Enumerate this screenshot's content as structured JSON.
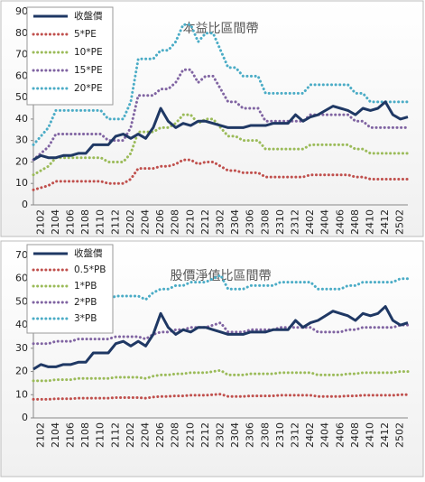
{
  "chart_data": [
    {
      "type": "line",
      "title": "本益比區間帶",
      "categories": [
        null,
        "2102",
        null,
        "2104",
        null,
        "2106",
        null,
        "2108",
        null,
        "2110",
        null,
        "2112",
        null,
        "2202",
        null,
        "2204",
        null,
        "2206",
        null,
        "2208",
        null,
        "2210",
        null,
        "2212",
        null,
        "2302",
        null,
        "2304",
        null,
        "2306",
        null,
        "2308",
        null,
        "2310",
        null,
        "2312",
        null,
        "2402",
        null,
        "2404",
        null,
        "2406",
        null,
        "2408",
        null,
        "2410",
        null,
        "2412",
        null,
        "2502",
        null
      ],
      "series": [
        {
          "name": "收盤價",
          "color": "#1f3864",
          "values": [
            21,
            23,
            22,
            22,
            23,
            23,
            24,
            24,
            28,
            28,
            28,
            32,
            33,
            31,
            33,
            31,
            36,
            45,
            39,
            36,
            38,
            37,
            39,
            39,
            38,
            37,
            36,
            36,
            36,
            37,
            37,
            37,
            38,
            38,
            38,
            42,
            39,
            41,
            42,
            44,
            46,
            45,
            44,
            42,
            45,
            44,
            45,
            48,
            42,
            40,
            41
          ]
        },
        {
          "name": "5*PE",
          "color": "#c0504d",
          "values": [
            7,
            8,
            9,
            11,
            11,
            11,
            11,
            11,
            11,
            11,
            10,
            10,
            10,
            12,
            17,
            17,
            17,
            18,
            18,
            19,
            21,
            21,
            19,
            20,
            20,
            18,
            16,
            16,
            15,
            15,
            15,
            13,
            13,
            13,
            13,
            13,
            13,
            14,
            14,
            14,
            14,
            14,
            14,
            13,
            13,
            12,
            12,
            12,
            12,
            12,
            12
          ]
        },
        {
          "name": "10*PE",
          "color": "#9bbb59",
          "values": [
            14,
            16,
            18,
            22,
            22,
            22,
            22,
            22,
            22,
            22,
            20,
            20,
            20,
            24,
            34,
            34,
            34,
            36,
            36,
            38,
            42,
            42,
            38,
            40,
            40,
            36,
            32,
            32,
            30,
            30,
            30,
            26,
            26,
            26,
            26,
            26,
            26,
            28,
            28,
            28,
            28,
            28,
            28,
            26,
            26,
            24,
            24,
            24,
            24,
            24,
            24
          ]
        },
        {
          "name": "15*PE",
          "color": "#8064a2",
          "values": [
            21,
            24,
            27,
            33,
            33,
            33,
            33,
            33,
            33,
            33,
            30,
            30,
            30,
            36,
            51,
            51,
            51,
            54,
            54,
            57,
            63,
            63,
            57,
            60,
            60,
            54,
            48,
            48,
            45,
            45,
            45,
            39,
            39,
            39,
            39,
            39,
            39,
            42,
            42,
            42,
            42,
            42,
            42,
            39,
            39,
            36,
            36,
            36,
            36,
            36,
            36
          ]
        },
        {
          "name": "20*PE",
          "color": "#4bacc6",
          "values": [
            28,
            32,
            36,
            44,
            44,
            44,
            44,
            44,
            44,
            44,
            40,
            40,
            40,
            48,
            68,
            68,
            68,
            72,
            72,
            76,
            84,
            84,
            76,
            80,
            80,
            72,
            64,
            64,
            60,
            60,
            60,
            52,
            52,
            52,
            52,
            52,
            52,
            56,
            56,
            56,
            56,
            56,
            56,
            52,
            52,
            48,
            48,
            48,
            48,
            48,
            48
          ]
        }
      ],
      "ylim": [
        0,
        90
      ],
      "yticks": [
        0,
        10,
        20,
        30,
        40,
        50,
        60,
        70,
        80,
        90
      ]
    },
    {
      "type": "line",
      "title": "股價淨值比區間帶",
      "categories": [
        null,
        "2102",
        null,
        "2104",
        null,
        "2106",
        null,
        "2108",
        null,
        "2110",
        null,
        "2112",
        null,
        "2202",
        null,
        "2204",
        null,
        "2206",
        null,
        "2208",
        null,
        "2210",
        null,
        "2212",
        null,
        "2302",
        null,
        "2304",
        null,
        "2306",
        null,
        "2308",
        null,
        "2310",
        null,
        "2312",
        null,
        "2402",
        null,
        "2404",
        null,
        "2406",
        null,
        "2408",
        null,
        "2410",
        null,
        "2412",
        null,
        "2502",
        null
      ],
      "series": [
        {
          "name": "收盤價",
          "color": "#1f3864",
          "values": [
            21,
            23,
            22,
            22,
            23,
            23,
            24,
            24,
            28,
            28,
            28,
            32,
            33,
            31,
            33,
            31,
            36,
            45,
            39,
            36,
            38,
            37,
            39,
            39,
            38,
            37,
            36,
            36,
            36,
            37,
            37,
            37,
            38,
            38,
            38,
            42,
            39,
            41,
            42,
            44,
            46,
            45,
            44,
            42,
            45,
            44,
            45,
            48,
            42,
            40,
            41
          ]
        },
        {
          "name": "0.5*PB",
          "color": "#c0504d",
          "values": [
            8,
            8,
            8,
            8.25,
            8.25,
            8.25,
            8.5,
            8.5,
            8.5,
            8.5,
            8.5,
            8.75,
            8.75,
            8.75,
            8.75,
            8.5,
            9,
            9.25,
            9.25,
            9.5,
            9.5,
            9.75,
            9.75,
            9.75,
            10,
            10.25,
            9.25,
            9.25,
            9.25,
            9.5,
            9.5,
            9.5,
            9.5,
            9.75,
            9.75,
            9.75,
            9.75,
            9.75,
            9.25,
            9.25,
            9.25,
            9.25,
            9.5,
            9.5,
            9.75,
            9.75,
            9.75,
            9.75,
            9.75,
            10,
            10
          ]
        },
        {
          "name": "1*PB",
          "color": "#9bbb59",
          "values": [
            16,
            16,
            16,
            16.5,
            16.5,
            16.5,
            17,
            17,
            17,
            17,
            17,
            17.5,
            17.5,
            17.5,
            17.5,
            17,
            18,
            18.5,
            18.5,
            19,
            19,
            19.5,
            19.5,
            19.5,
            20,
            20.5,
            18.5,
            18.5,
            18.5,
            19,
            19,
            19,
            19,
            19.5,
            19.5,
            19.5,
            19.5,
            19.5,
            18.5,
            18.5,
            18.5,
            18.5,
            19,
            19,
            19.5,
            19.5,
            19.5,
            19.5,
            19.5,
            20,
            20
          ]
        },
        {
          "name": "2*PB",
          "color": "#8064a2",
          "values": [
            32,
            32,
            32,
            33,
            33,
            33,
            34,
            34,
            34,
            34,
            34,
            35,
            35,
            35,
            35,
            34,
            36,
            37,
            37,
            38,
            38,
            39,
            39,
            39,
            40,
            41,
            37,
            37,
            37,
            38,
            38,
            38,
            38,
            39,
            39,
            39,
            39,
            39,
            37,
            37,
            37,
            37,
            38,
            38,
            39,
            39,
            39,
            39,
            39,
            40,
            40
          ]
        },
        {
          "name": "3*PB",
          "color": "#4bacc6",
          "values": [
            48,
            48,
            48,
            49.5,
            49.5,
            49.5,
            51,
            51,
            51,
            51,
            51,
            52.5,
            52.5,
            52.5,
            52.5,
            51,
            54,
            55.5,
            55.5,
            57,
            57,
            58.5,
            58.5,
            58.5,
            60,
            61.5,
            55.5,
            55.5,
            55.5,
            57,
            57,
            57,
            57,
            58.5,
            58.5,
            58.5,
            58.5,
            58.5,
            55.5,
            55.5,
            55.5,
            55.5,
            57,
            57,
            58.5,
            58.5,
            58.5,
            58.5,
            58.5,
            60,
            60
          ]
        }
      ],
      "ylim": [
        0,
        70
      ],
      "yticks": [
        0,
        10,
        20,
        30,
        40,
        50,
        60,
        70
      ]
    }
  ]
}
